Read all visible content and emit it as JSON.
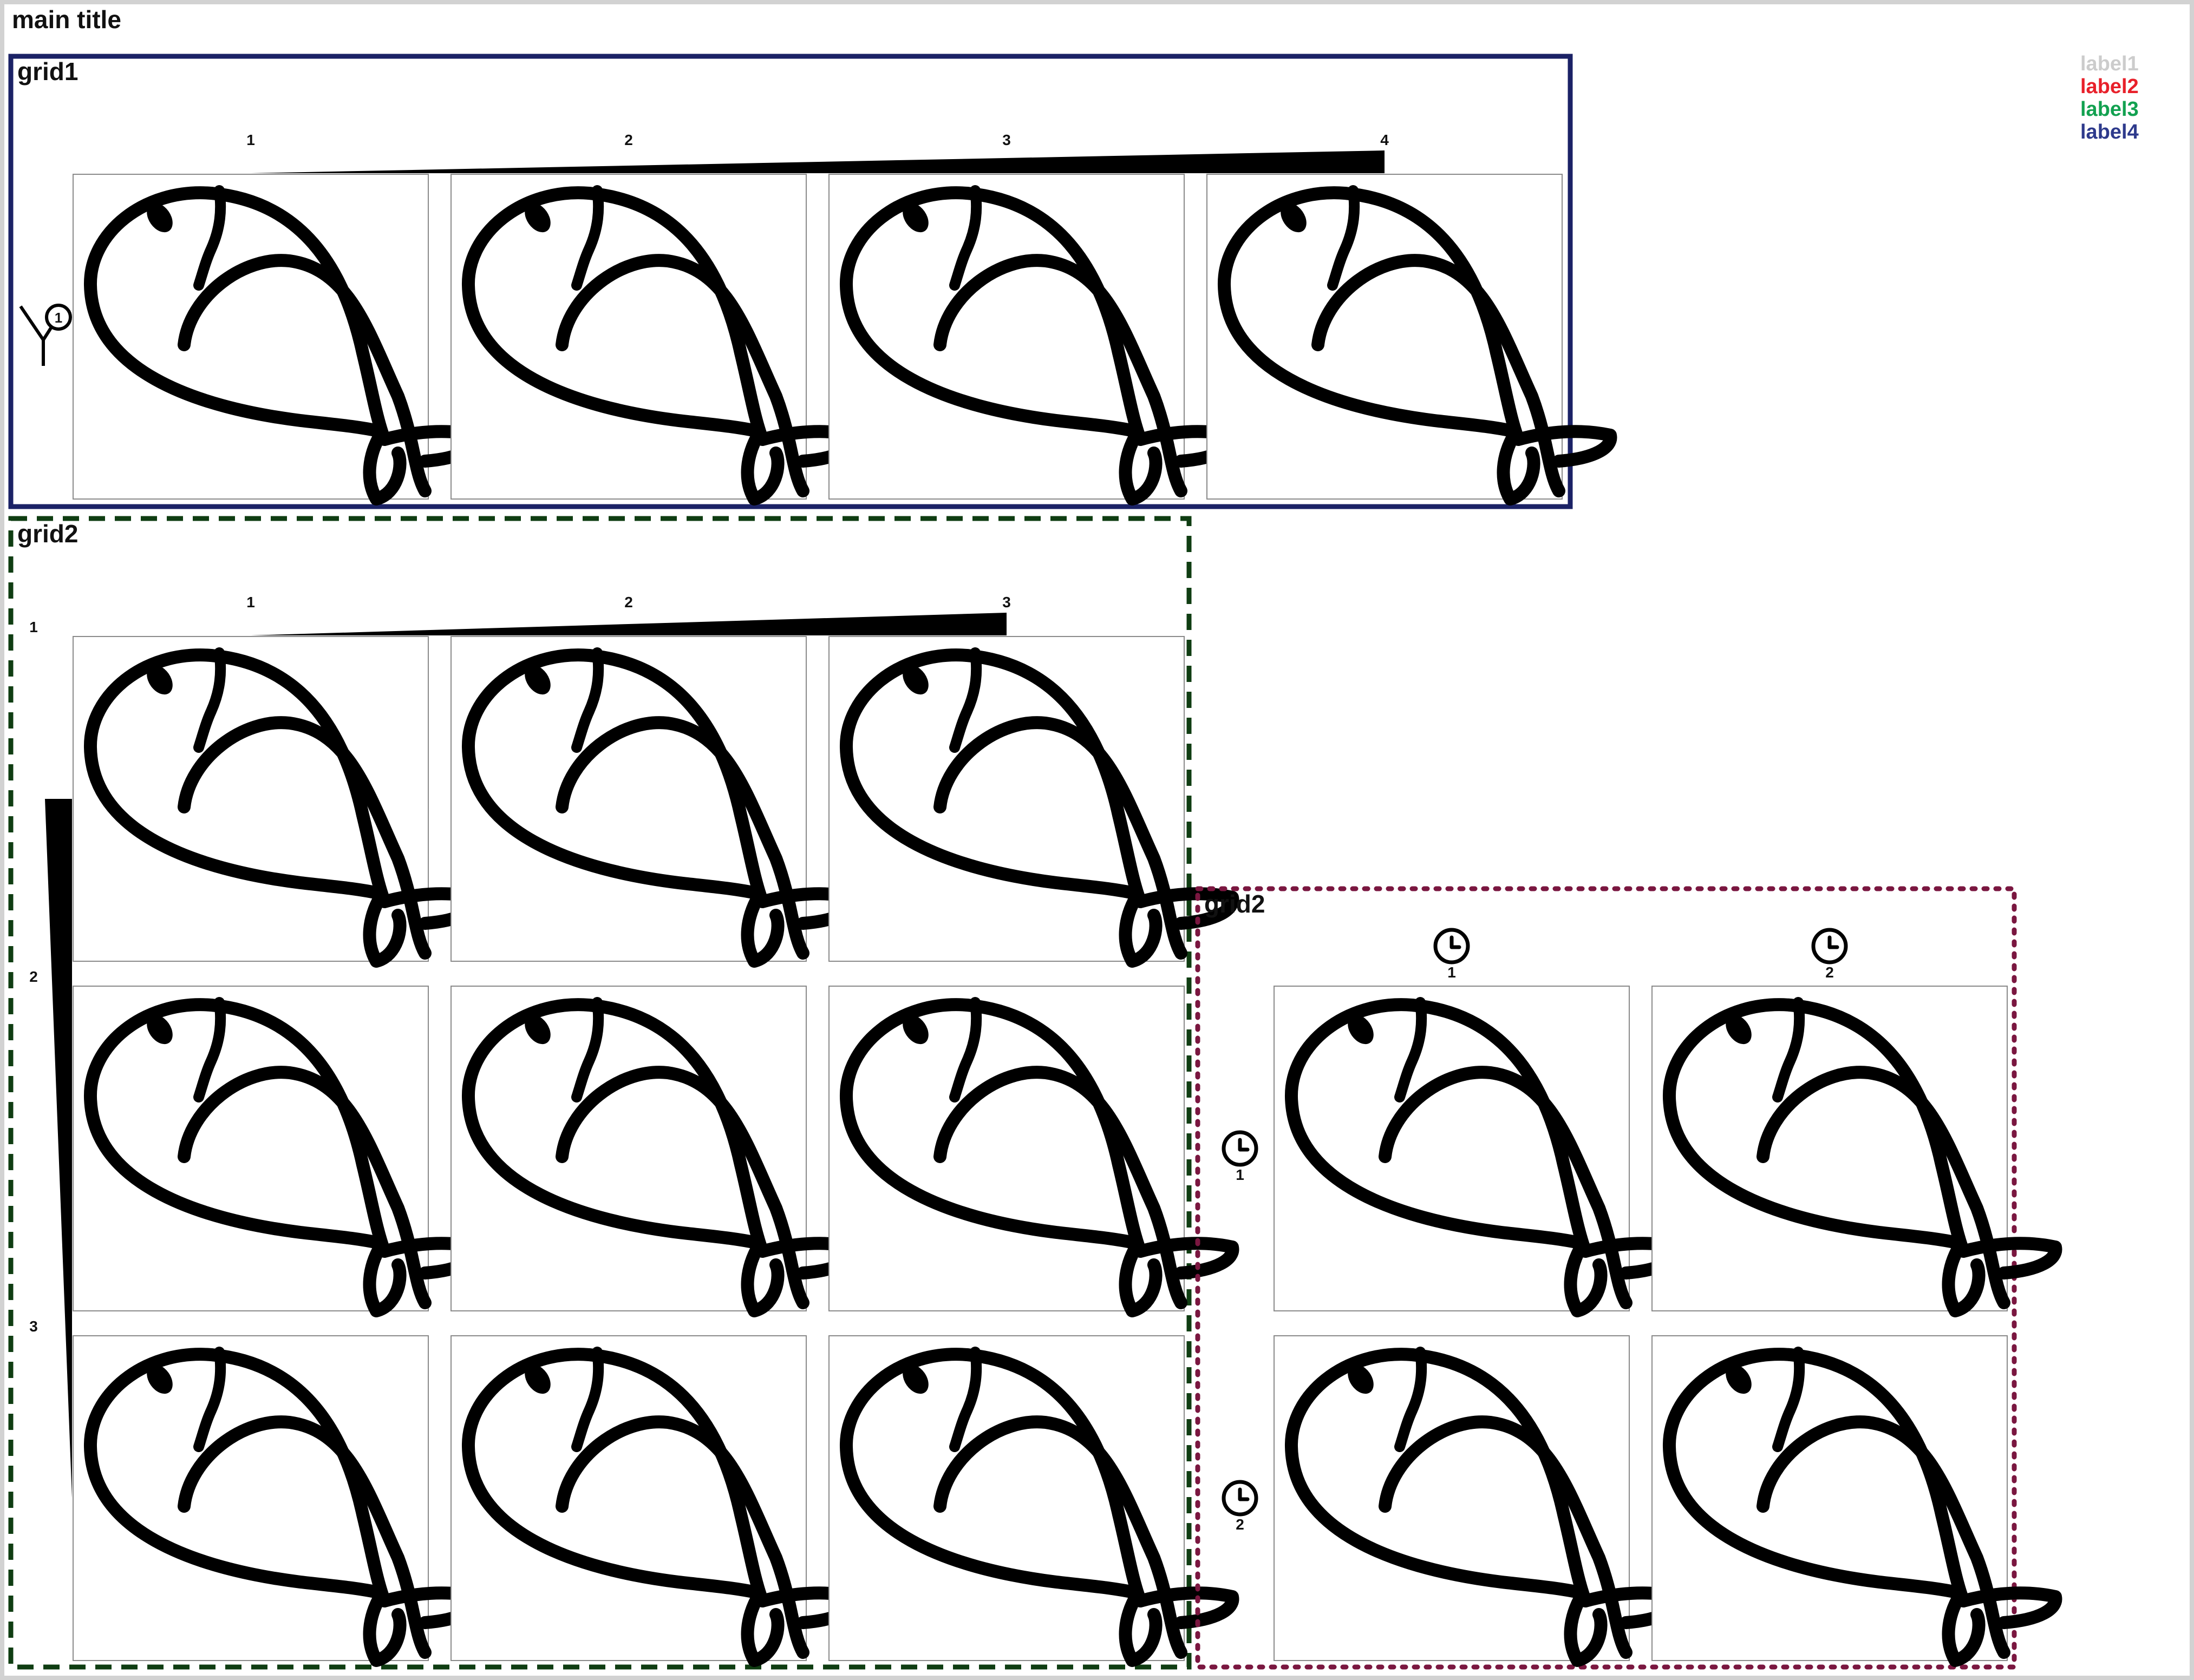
{
  "main_title": "main title",
  "legend": [
    {
      "label": "label1",
      "color": "#cccccc"
    },
    {
      "label": "label2",
      "color": "#e8202a"
    },
    {
      "label": "label3",
      "color": "#12a150"
    },
    {
      "label": "label4",
      "color": "#2e3a8c"
    }
  ],
  "grids": [
    {
      "title": "grid1",
      "border_color": "#1b2266",
      "border_style": "solid",
      "rows": 1,
      "cols": 4,
      "col_labels": [
        "1",
        "2",
        "3",
        "4"
      ],
      "col_header_icon": "wedge-ramp-icon",
      "row_labels": [
        "1"
      ],
      "row_header_icon": "branch-node-icon",
      "cell_icon": "fish-icon"
    },
    {
      "title": "grid2",
      "border_color": "#0f3d12",
      "border_style": "dashed",
      "rows": 3,
      "cols": 3,
      "col_labels": [
        "1",
        "2",
        "3"
      ],
      "col_header_icon": "wedge-ramp-icon",
      "row_labels": [
        "1",
        "2",
        "3"
      ],
      "row_header_icon": "wedge-ramp-icon",
      "cell_icon": "fish-icon"
    },
    {
      "title": "grid2",
      "border_color": "#7a1740",
      "border_style": "dotted",
      "rows": 2,
      "cols": 2,
      "col_labels": [
        "1",
        "2"
      ],
      "col_header_icon": "clock-icon",
      "row_labels": [
        "1",
        "2"
      ],
      "row_header_icon": "clock-icon",
      "cell_icon": "fish-icon"
    }
  ]
}
